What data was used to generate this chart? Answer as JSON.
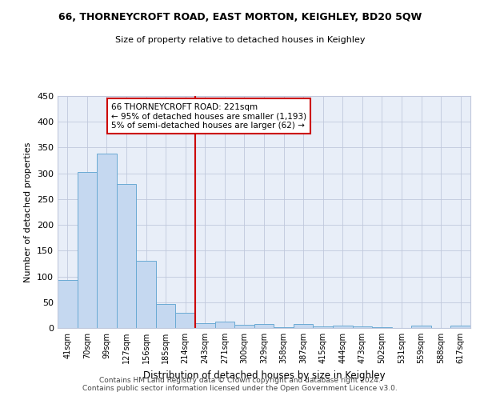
{
  "title_line1": "66, THORNEYCROFT ROAD, EAST MORTON, KEIGHLEY, BD20 5QW",
  "title_line2": "Size of property relative to detached houses in Keighley",
  "xlabel": "Distribution of detached houses by size in Keighley",
  "ylabel": "Number of detached properties",
  "footer": "Contains HM Land Registry data © Crown copyright and database right 2024.\nContains public sector information licensed under the Open Government Licence v3.0.",
  "bar_labels": [
    "41sqm",
    "70sqm",
    "99sqm",
    "127sqm",
    "156sqm",
    "185sqm",
    "214sqm",
    "243sqm",
    "271sqm",
    "300sqm",
    "329sqm",
    "358sqm",
    "387sqm",
    "415sqm",
    "444sqm",
    "473sqm",
    "502sqm",
    "531sqm",
    "559sqm",
    "588sqm",
    "617sqm"
  ],
  "bar_values": [
    93,
    302,
    338,
    280,
    130,
    47,
    30,
    9,
    12,
    6,
    8,
    1,
    8,
    3,
    5,
    3,
    1,
    0,
    4,
    0,
    4
  ],
  "bar_color": "#c5d8f0",
  "bar_edge_color": "#6aaad4",
  "vline_x": 6.5,
  "vline_color": "#cc0000",
  "annotation_title": "66 THORNEYCROFT ROAD: 221sqm",
  "annotation_line1": "← 95% of detached houses are smaller (1,193)",
  "annotation_line2": "5% of semi-detached houses are larger (62) →",
  "annotation_box_color": "#ffffff",
  "annotation_box_edge": "#cc0000",
  "background_color": "#e8eef8",
  "ylim": [
    0,
    450
  ],
  "yticks": [
    0,
    50,
    100,
    150,
    200,
    250,
    300,
    350,
    400,
    450
  ],
  "grid_color": "#c0c8dc"
}
